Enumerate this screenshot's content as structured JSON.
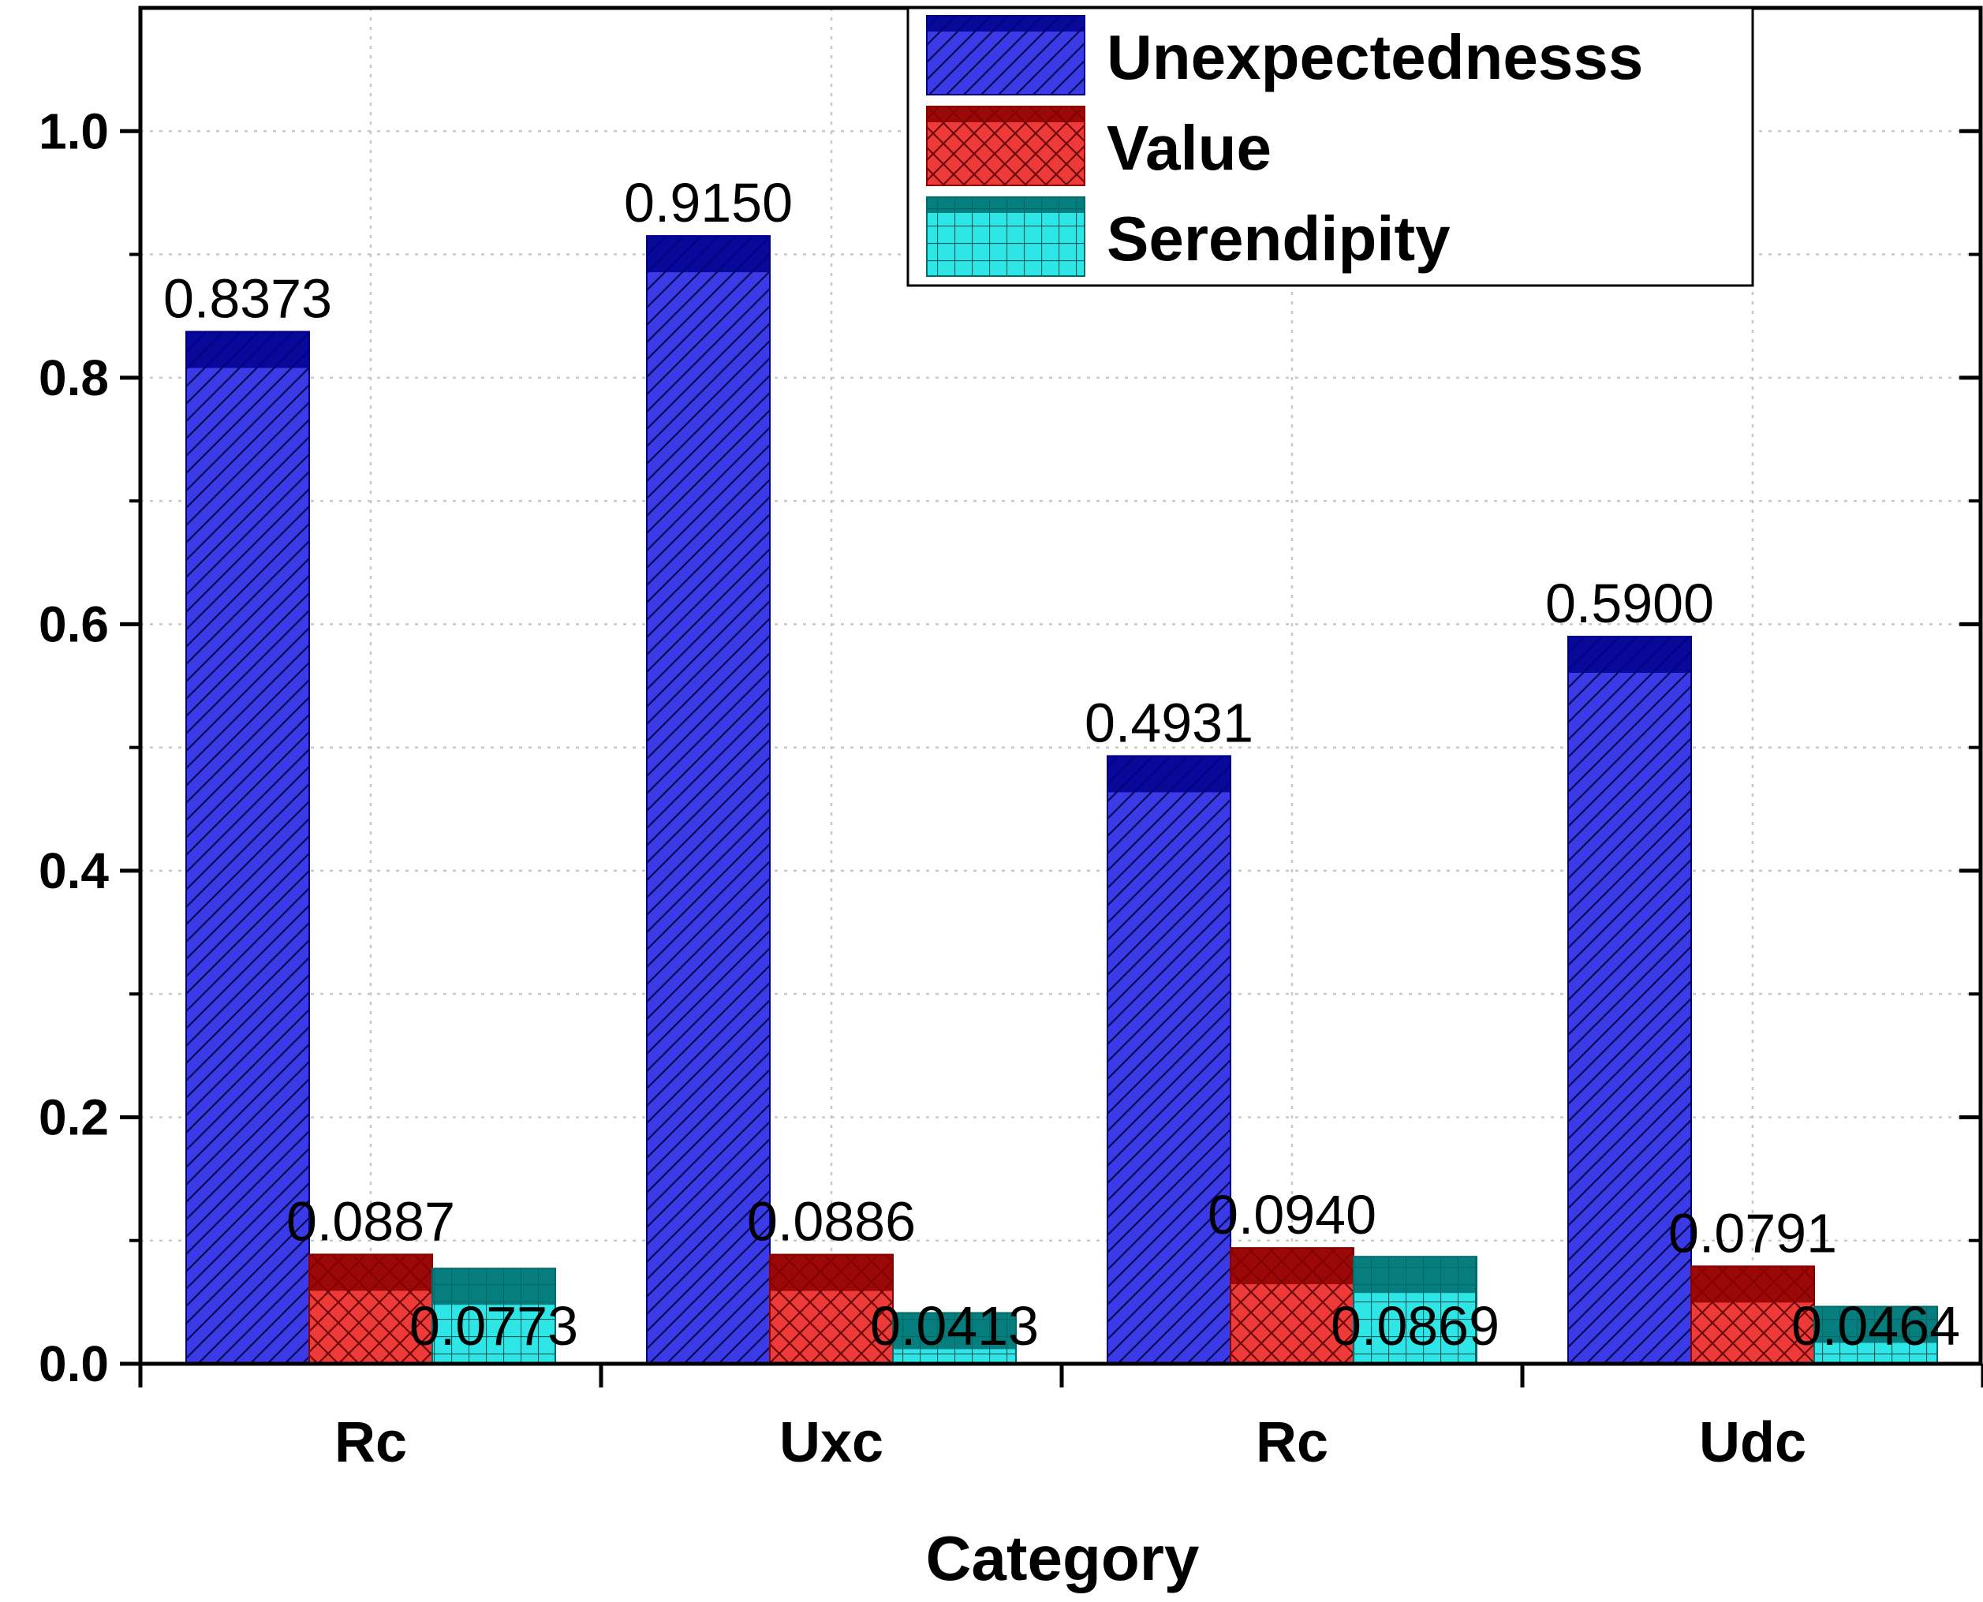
{
  "chart_data": {
    "type": "bar",
    "xlabel": "Category",
    "ylabel": "",
    "ylim": [
      0,
      1.1
    ],
    "yticks": [
      "0.0",
      "0.2",
      "0.4",
      "0.6",
      "0.8",
      "1.0"
    ],
    "categories": [
      "Rc",
      "Uxc",
      "Rc",
      "Udc"
    ],
    "grid": true,
    "legend_position": "top-right",
    "series": [
      {
        "name": "Unexpectednesss",
        "values": [
          0.8373,
          0.915,
          0.4931,
          0.59
        ],
        "labels": [
          "0.8373",
          "0.9150",
          "0.4931",
          "0.5900"
        ],
        "color": "#3a3ae6",
        "edge_color": "#00008b"
      },
      {
        "name": "Value",
        "values": [
          0.0887,
          0.0886,
          0.094,
          0.0791
        ],
        "labels": [
          "0.0887",
          "0.0886",
          "0.0940",
          "0.0791"
        ],
        "color": "#ef3a3a",
        "edge_color": "#8b0000"
      },
      {
        "name": "Serendipity",
        "values": [
          0.0773,
          0.0413,
          0.0869,
          0.0464
        ],
        "labels": [
          "0.0773",
          "0.0413",
          "0.0869",
          "0.0464"
        ],
        "color": "#2ee6e6",
        "edge_color": "#006b6b"
      }
    ]
  }
}
